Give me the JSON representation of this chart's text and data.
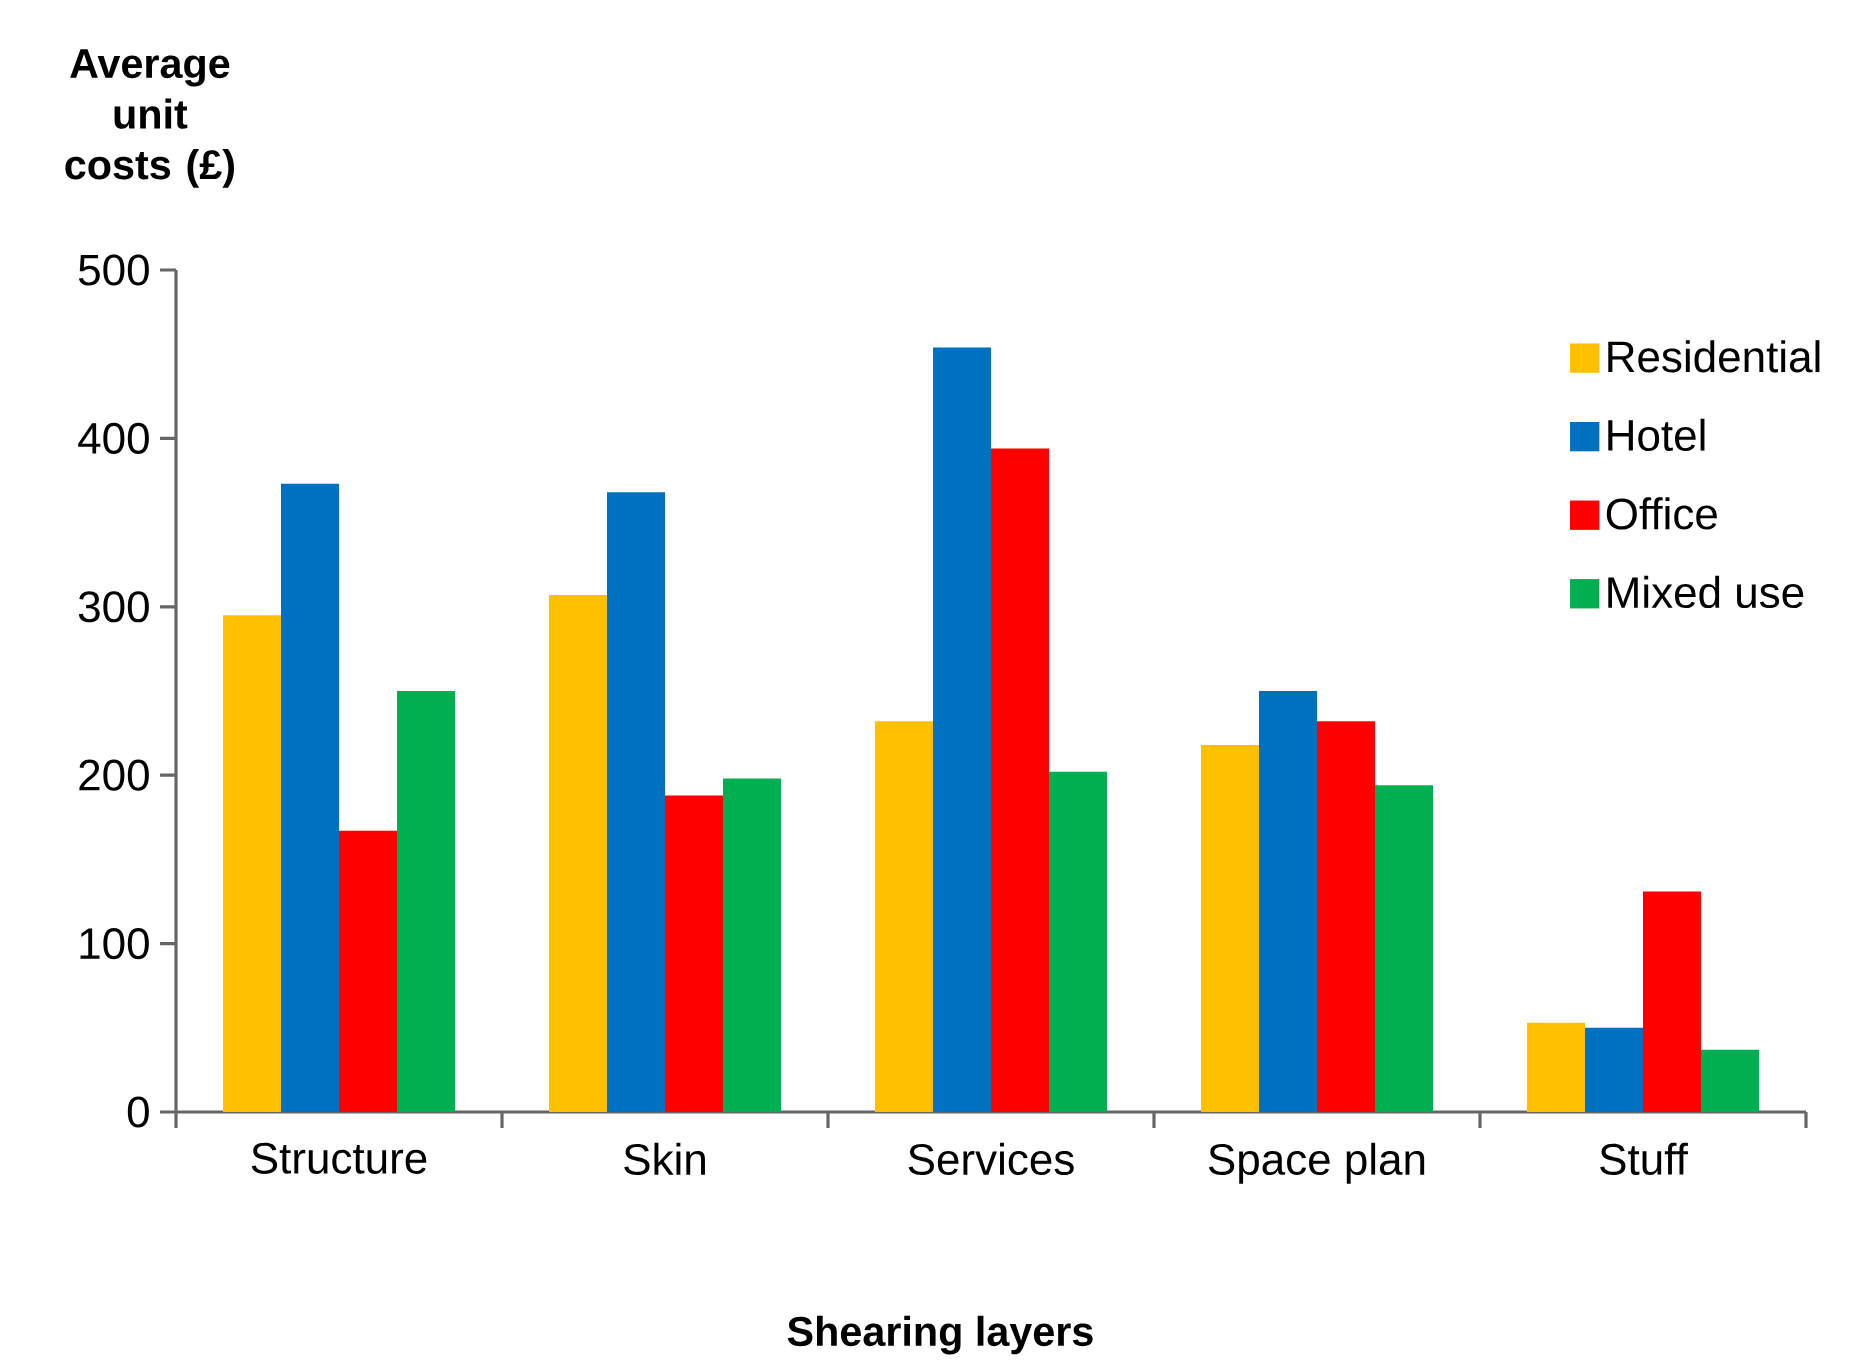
{
  "chart_data": {
    "type": "bar",
    "xlabel": "Shearing layers",
    "ylabel": "Average unit costs (£)",
    "categories": [
      "Structure",
      "Skin",
      "Services",
      "Space plan",
      "Stuff"
    ],
    "series": [
      {
        "name": "Residential",
        "color": "#ffc000",
        "values": [
          295,
          307,
          232,
          218,
          53
        ]
      },
      {
        "name": "Hotel",
        "color": "#0070c0",
        "values": [
          373,
          368,
          454,
          250,
          50
        ]
      },
      {
        "name": "Office",
        "color": "#ff0000",
        "values": [
          167,
          188,
          394,
          232,
          131
        ]
      },
      {
        "name": "Mixed use",
        "color": "#00b050",
        "values": [
          250,
          198,
          202,
          194,
          37
        ]
      }
    ],
    "ylim": [
      0,
      500
    ],
    "yticks": [
      0,
      100,
      200,
      300,
      400,
      500
    ],
    "legend": "right",
    "grid": false
  }
}
